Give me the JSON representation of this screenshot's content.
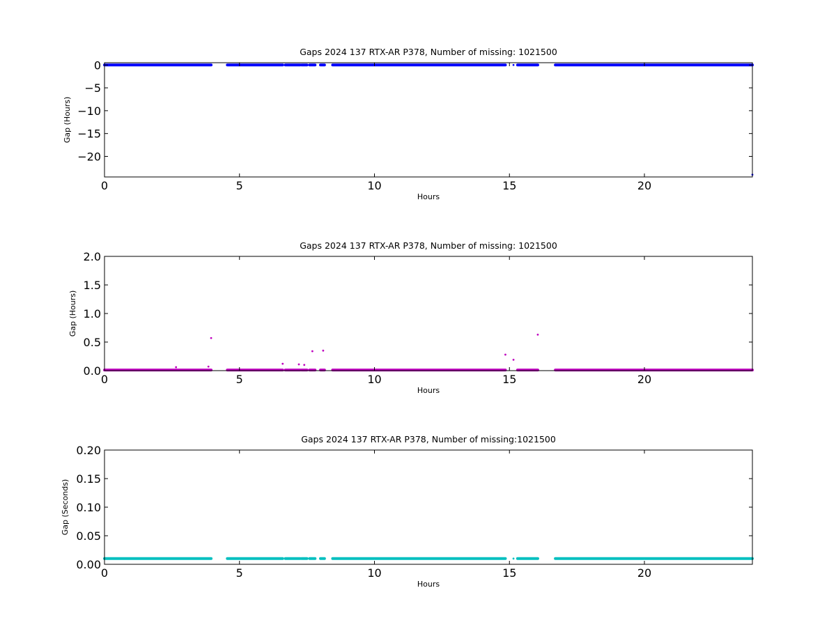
{
  "chart_data": [
    {
      "type": "scatter",
      "title": "Gaps 2024 137 RTX-AR  P378, Number of missing: 1021500",
      "xlabel": "Hours",
      "ylabel": "Gap (Hours)",
      "xlim": [
        0,
        24
      ],
      "ylim": [
        -24.5,
        0.5
      ],
      "xticks": [
        0,
        5,
        10,
        15,
        20
      ],
      "xtick_labels": [
        "0",
        "5",
        "10",
        "15",
        "20"
      ],
      "yticks": [
        0,
        -5,
        -10,
        -15,
        -20
      ],
      "ytick_labels": [
        "0",
        "−5",
        "−10",
        "−15",
        "−20"
      ],
      "grid": false,
      "color": "#0000ff",
      "series": [
        {
          "segments": [
            [
              0,
              3.95
            ],
            [
              4.55,
              6.6
            ],
            [
              6.7,
              7.25
            ],
            [
              7.3,
              7.5
            ],
            [
              7.6,
              7.8
            ],
            [
              8.0,
              8.15
            ],
            [
              8.45,
              14.85
            ],
            [
              15.3,
              16.05
            ],
            [
              16.7,
              24.0
            ]
          ],
          "value": 0,
          "points": [
            {
              "x": 15.15,
              "y": 0
            },
            {
              "x": 24.0,
              "y": -24
            }
          ]
        }
      ]
    },
    {
      "type": "scatter",
      "title": "Gaps 2024 137 RTX-AR  P378, Number of missing: 1021500",
      "xlabel": "Hours",
      "ylabel": "Gap (Hours)",
      "xlim": [
        0,
        24
      ],
      "ylim": [
        0,
        2.0
      ],
      "xticks": [
        0,
        5,
        10,
        15,
        20
      ],
      "xtick_labels": [
        "0",
        "5",
        "10",
        "15",
        "20"
      ],
      "yticks": [
        0,
        0.5,
        1.0,
        1.5,
        2.0
      ],
      "ytick_labels": [
        "0.0",
        "0.5",
        "1.0",
        "1.5",
        "2.0"
      ],
      "grid": false,
      "color": "#bf00bf",
      "series": [
        {
          "segments": [
            [
              0,
              3.95
            ],
            [
              4.55,
              6.6
            ],
            [
              6.7,
              7.25
            ],
            [
              7.3,
              7.5
            ],
            [
              7.6,
              7.8
            ],
            [
              8.0,
              8.15
            ],
            [
              8.45,
              14.85
            ],
            [
              15.3,
              16.05
            ],
            [
              16.7,
              24.0
            ]
          ],
          "value": 0.01,
          "points": [
            {
              "x": 2.65,
              "y": 0.06
            },
            {
              "x": 3.85,
              "y": 0.07
            },
            {
              "x": 3.95,
              "y": 0.57
            },
            {
              "x": 6.6,
              "y": 0.12
            },
            {
              "x": 7.2,
              "y": 0.11
            },
            {
              "x": 7.4,
              "y": 0.1
            },
            {
              "x": 7.7,
              "y": 0.34
            },
            {
              "x": 8.1,
              "y": 0.35
            },
            {
              "x": 14.85,
              "y": 0.28
            },
            {
              "x": 15.15,
              "y": 0.19
            },
            {
              "x": 16.05,
              "y": 0.63
            }
          ]
        }
      ]
    },
    {
      "type": "scatter",
      "title": "Gaps 2024 137 RTX-AR  P378, Number of missing:1021500",
      "xlabel": "Hours",
      "ylabel": "Gap (Seconds)",
      "xlim": [
        0,
        24
      ],
      "ylim": [
        0,
        0.2
      ],
      "xticks": [
        0,
        5,
        10,
        15,
        20
      ],
      "xtick_labels": [
        "0",
        "5",
        "10",
        "15",
        "20"
      ],
      "yticks": [
        0,
        0.05,
        0.1,
        0.15,
        0.2
      ],
      "ytick_labels": [
        "0.00",
        "0.05",
        "0.10",
        "0.15",
        "0.20"
      ],
      "grid": false,
      "color": "#00bfbf",
      "series": [
        {
          "segments": [
            [
              0,
              3.95
            ],
            [
              4.55,
              6.6
            ],
            [
              6.7,
              7.25
            ],
            [
              7.3,
              7.5
            ],
            [
              7.6,
              7.8
            ],
            [
              8.0,
              8.15
            ],
            [
              8.45,
              14.85
            ],
            [
              15.3,
              16.05
            ],
            [
              16.7,
              24.0
            ]
          ],
          "value": 0.01,
          "points": [
            {
              "x": 15.15,
              "y": 0.01
            }
          ]
        }
      ]
    }
  ]
}
